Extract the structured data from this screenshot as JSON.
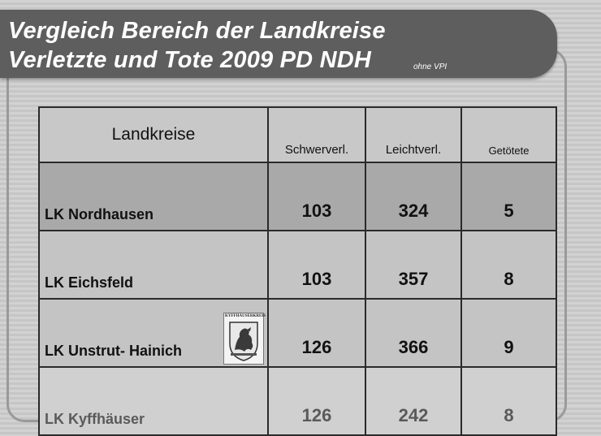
{
  "title": {
    "line1": "Vergleich Bereich der Landkreise",
    "line2": "Verletzte und Tote 2009  PD NDH",
    "note": "ohne VPI"
  },
  "table": {
    "headers": [
      "Landkreise",
      "Schwerverl.",
      "Leichtverl.",
      "Getötete"
    ],
    "rows": [
      {
        "name": "LK Nordhausen",
        "schwerverl": "103",
        "leichtverl": "324",
        "getoetete": "5"
      },
      {
        "name": "LK Eichsfeld",
        "schwerverl": "103",
        "leichtverl": "357",
        "getoetete": "8"
      },
      {
        "name": "LK Unstrut- Hainich",
        "schwerverl": "126",
        "leichtverl": "366",
        "getoetete": "9"
      },
      {
        "name": "LK Kyffhäuser",
        "schwerverl": "126",
        "leichtverl": "242",
        "getoetete": "8"
      }
    ],
    "crest": {
      "label": "KYFFHÄUSERKREIS",
      "icon": "coat-of-arms-icon"
    }
  },
  "colors": {
    "banner": "#5e5e5e",
    "title_text": "#ffffff",
    "first_row": "#a9a9a9",
    "grid": "#2a2a2a"
  }
}
